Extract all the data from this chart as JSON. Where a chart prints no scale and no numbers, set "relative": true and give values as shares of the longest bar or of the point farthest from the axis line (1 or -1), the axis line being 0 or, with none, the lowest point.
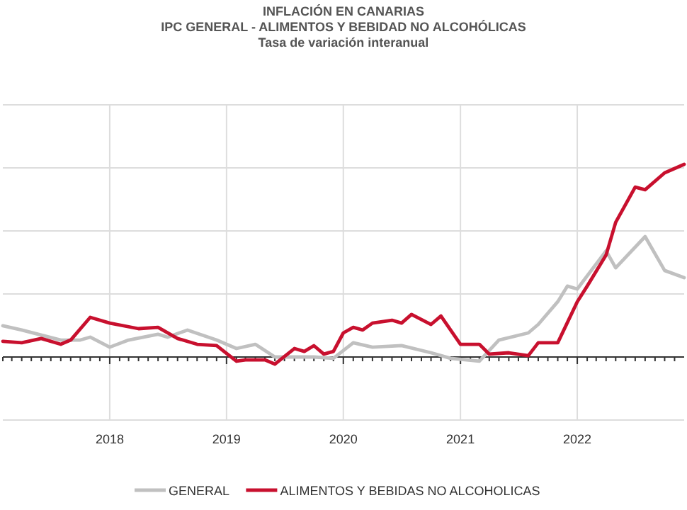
{
  "chart_data": {
    "type": "line",
    "title": "INFLACIÓN EN CANARIAS",
    "subtitle": "IPC GENERAL - ALIMENTOS Y BEBIDAD NO ALCOHÓLICAS\nTasa de variación interanual",
    "relative": true,
    "xlim": [
      "2017-02",
      "2022-12"
    ],
    "xticks": [
      {
        "value": "2018-01",
        "label": "2018"
      },
      {
        "value": "2019-01",
        "label": "2019"
      },
      {
        "value": "2020-01",
        "label": "2020"
      },
      {
        "value": "2021-01",
        "label": "2021"
      },
      {
        "value": "2022-01",
        "label": "2022"
      }
    ],
    "grid": true,
    "legend": "bottom",
    "series": [
      {
        "name": "GENERAL",
        "color": "#c0c0c0",
        "x": [
          "2017-02",
          "2017-04",
          "2017-08",
          "2017-10",
          "2017-11",
          "2018-01",
          "2018-03",
          "2018-06",
          "2018-07",
          "2018-09",
          "2018-12",
          "2019-02",
          "2019-04",
          "2019-06",
          "2019-10",
          "2019-12",
          "2020-02",
          "2020-04",
          "2020-07",
          "2020-10",
          "2020-12",
          "2021-03",
          "2021-05",
          "2021-08",
          "2021-09",
          "2021-11",
          "2021-12",
          "2022-01",
          "2022-04",
          "2022-05",
          "2022-08",
          "2022-10",
          "2022-12"
        ],
        "values": [
          0.162,
          0.14,
          0.088,
          0.088,
          0.103,
          0.051,
          0.088,
          0.118,
          0.103,
          0.14,
          0.088,
          0.044,
          0.066,
          0,
          0,
          -0.007,
          0.074,
          0.051,
          0.059,
          0.022,
          -0.007,
          -0.022,
          0.088,
          0.125,
          0.169,
          0.287,
          0.368,
          0.353,
          0.551,
          0.463,
          0.625,
          0.449,
          0.412
        ]
      },
      {
        "name": "ALIMENTOS Y BEBIDAS NO ALCOHOLICAS",
        "color": "#c8102e",
        "x": [
          "2017-02",
          "2017-04",
          "2017-06",
          "2017-08",
          "2017-09",
          "2017-11",
          "2018-01",
          "2018-04",
          "2018-06",
          "2018-08",
          "2018-10",
          "2018-12",
          "2019-02",
          "2019-03",
          "2019-05",
          "2019-06",
          "2019-08",
          "2019-09",
          "2019-10",
          "2019-11",
          "2019-12",
          "2020-01",
          "2020-02",
          "2020-03",
          "2020-04",
          "2020-06",
          "2020-07",
          "2020-08",
          "2020-10",
          "2020-11",
          "2021-01",
          "2021-03",
          "2021-04",
          "2021-06",
          "2021-08",
          "2021-09",
          "2021-11",
          "2022-01",
          "2022-02",
          "2022-04",
          "2022-05",
          "2022-07",
          "2022-08",
          "2022-10",
          "2022-12"
        ],
        "values": [
          0.081,
          0.074,
          0.096,
          0.066,
          0.088,
          0.206,
          0.176,
          0.147,
          0.154,
          0.096,
          0.066,
          0.059,
          -0.022,
          -0.015,
          -0.015,
          -0.037,
          0.044,
          0.029,
          0.059,
          0.015,
          0.029,
          0.125,
          0.154,
          0.14,
          0.176,
          0.191,
          0.176,
          0.221,
          0.169,
          0.213,
          0.066,
          0.066,
          0.015,
          0.022,
          0.007,
          0.074,
          0.074,
          0.287,
          0.368,
          0.529,
          0.699,
          0.882,
          0.868,
          0.956,
          1
        ]
      }
    ]
  }
}
